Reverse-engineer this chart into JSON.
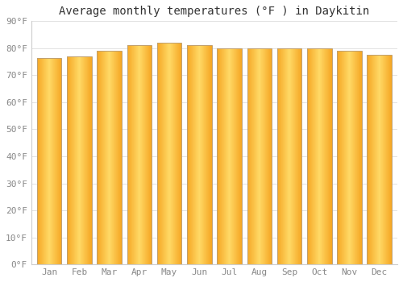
{
  "title": "Average monthly temperatures (°F ) in Daykitin",
  "months": [
    "Jan",
    "Feb",
    "Mar",
    "Apr",
    "May",
    "Jun",
    "Jul",
    "Aug",
    "Sep",
    "Oct",
    "Nov",
    "Dec"
  ],
  "values": [
    76.5,
    77.0,
    79.0,
    81.0,
    82.0,
    81.0,
    80.0,
    80.0,
    80.0,
    80.0,
    79.0,
    77.5
  ],
  "ylim": [
    0,
    90
  ],
  "yticks": [
    0,
    10,
    20,
    30,
    40,
    50,
    60,
    70,
    80,
    90
  ],
  "ytick_labels": [
    "0°F",
    "10°F",
    "20°F",
    "30°F",
    "40°F",
    "50°F",
    "60°F",
    "70°F",
    "80°F",
    "90°F"
  ],
  "bar_color_center": "#FFD966",
  "bar_color_edge": "#F5A623",
  "bar_border_color": "#C0A070",
  "background_color": "#FFFFFF",
  "grid_color": "#DDDDDD",
  "title_fontsize": 10,
  "tick_fontsize": 8,
  "title_font": "monospace",
  "tick_font": "monospace",
  "bar_width": 0.82
}
